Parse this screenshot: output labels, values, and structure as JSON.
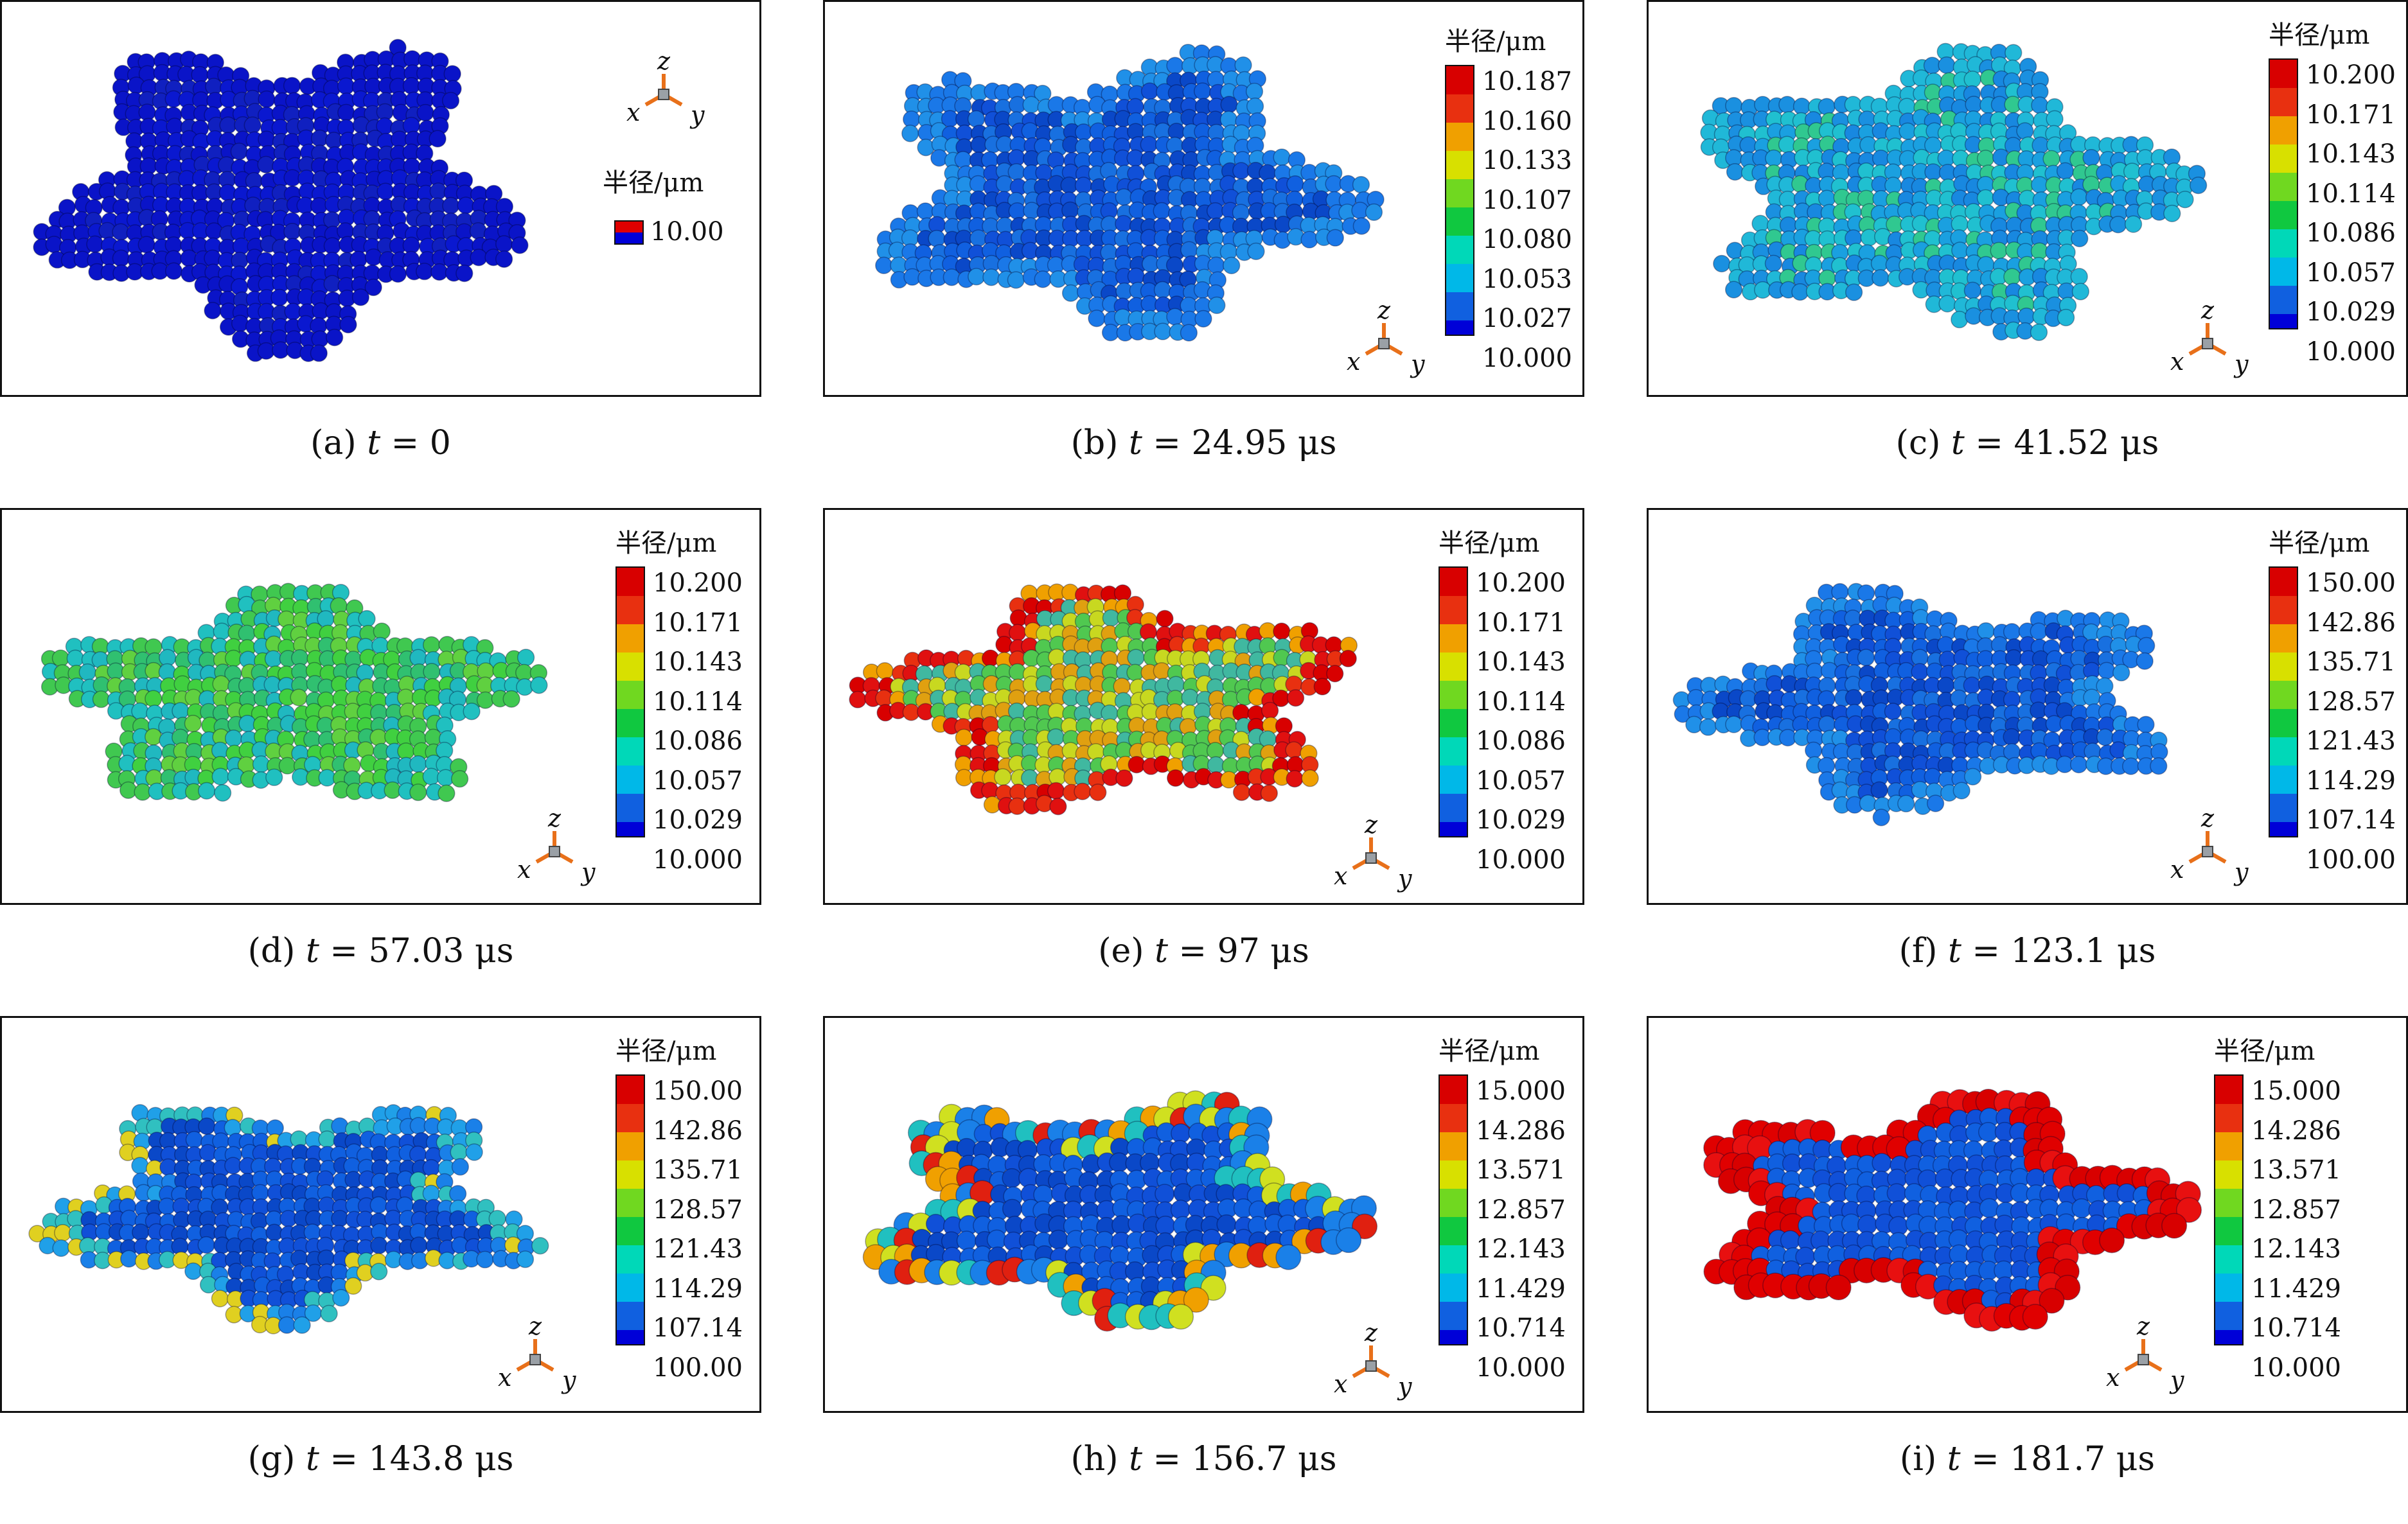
{
  "legend_title": "半径/μm",
  "axis_labels": {
    "x": "x",
    "y": "y",
    "z": "z"
  },
  "colors": {
    "scale": [
      "#0000d8",
      "#1060e0",
      "#00b8e8",
      "#00d8b8",
      "#10c840",
      "#70d820",
      "#d8e000",
      "#f0a000",
      "#e83010",
      "#d80000"
    ],
    "panel_a_ball": "#0a14c8"
  },
  "panels": [
    {
      "id": "a",
      "caption_label": "(a)",
      "caption_t": "t",
      "caption_eq": " = 0",
      "caption_unit": "",
      "legend_ticks": [
        "10.00"
      ],
      "single_swatch": true,
      "palette": "blue"
    },
    {
      "id": "b",
      "caption_label": "(b)",
      "caption_t": "t",
      "caption_eq": " = 24.95",
      "caption_unit": " μs",
      "legend_ticks": [
        "10.187",
        "10.160",
        "10.133",
        "10.107",
        "10.080",
        "10.053",
        "10.027",
        "10.000"
      ],
      "palette": "blue2"
    },
    {
      "id": "c",
      "caption_label": "(c)",
      "caption_t": "t",
      "caption_eq": " = 41.52",
      "caption_unit": " μs",
      "legend_ticks": [
        "10.200",
        "10.171",
        "10.143",
        "10.114",
        "10.086",
        "10.057",
        "10.029",
        "10.000"
      ],
      "palette": "cyan"
    },
    {
      "id": "d",
      "caption_label": "(d)",
      "caption_t": "t",
      "caption_eq": " = 57.03",
      "caption_unit": " μs",
      "legend_ticks": [
        "10.200",
        "10.171",
        "10.143",
        "10.114",
        "10.086",
        "10.057",
        "10.029",
        "10.000"
      ],
      "palette": "green"
    },
    {
      "id": "e",
      "caption_label": "(e)",
      "caption_t": "t",
      "caption_eq": " = 97",
      "caption_unit": " μs",
      "legend_ticks": [
        "10.200",
        "10.171",
        "10.143",
        "10.114",
        "10.086",
        "10.057",
        "10.029",
        "10.000"
      ],
      "palette": "red"
    },
    {
      "id": "f",
      "caption_label": "(f)",
      "caption_t": "t",
      "caption_eq": " = 123.1",
      "caption_unit": " μs",
      "legend_ticks": [
        "150.00",
        "142.86",
        "135.71",
        "128.57",
        "121.43",
        "114.29",
        "107.14",
        "100.00"
      ],
      "palette": "blue2"
    },
    {
      "id": "g",
      "caption_label": "(g)",
      "caption_t": "t",
      "caption_eq": " = 143.8",
      "caption_unit": " μs",
      "legend_ticks": [
        "150.00",
        "142.86",
        "135.71",
        "128.57",
        "121.43",
        "114.29",
        "107.14",
        "100.00"
      ],
      "palette": "blue3"
    },
    {
      "id": "h",
      "caption_label": "(h)",
      "caption_t": "t",
      "caption_eq": " = 156.7",
      "caption_unit": " μs",
      "legend_ticks": [
        "15.000",
        "14.286",
        "13.571",
        "12.857",
        "12.143",
        "11.429",
        "10.714",
        "10.000"
      ],
      "palette": "bluerim"
    },
    {
      "id": "i",
      "caption_label": "(i)",
      "caption_t": "t",
      "caption_eq": " = 181.7",
      "caption_unit": " μs",
      "legend_ticks": [
        "15.000",
        "14.286",
        "13.571",
        "12.857",
        "12.143",
        "11.429",
        "10.714",
        "10.000"
      ],
      "palette": "redrim"
    }
  ]
}
